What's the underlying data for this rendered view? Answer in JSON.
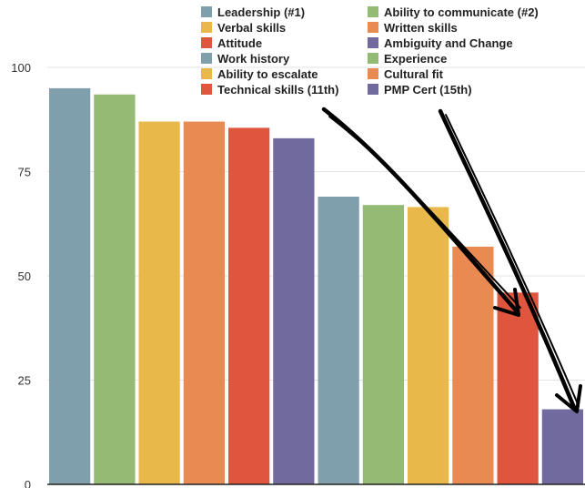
{
  "colors": {
    "grid": "#e3e3e3",
    "axis": "#222222",
    "arrow": "#000000"
  },
  "chart_data": {
    "type": "bar",
    "title": "",
    "xlabel": "",
    "ylabel": "",
    "ylim": [
      0,
      100
    ],
    "yticks": [
      0,
      25,
      50,
      75,
      100
    ],
    "grid": true,
    "legend_position": "top-right",
    "categories": [
      "Leadership (#1)",
      "Ability to communicate (#2)",
      "Verbal skills",
      "Written skills",
      "Attitude",
      "Ambiguity and Change",
      "Work history",
      "Experience",
      "Ability to escalate",
      "Cultural fit",
      "Technical skills (11th)",
      "PMP Cert (15th)"
    ],
    "values": [
      95,
      93.5,
      87,
      87,
      85.5,
      83,
      69,
      67,
      66.5,
      57,
      46,
      18
    ],
    "bar_colors": [
      "#7f9fad",
      "#93bb73",
      "#e8b94a",
      "#ea8a53",
      "#e0553e",
      "#716a9e",
      "#7f9fad",
      "#93bb73",
      "#e8b94a",
      "#ea8a53",
      "#e0553e",
      "#716a9e"
    ]
  },
  "annotations": [
    {
      "label": "arrow-to-technical-skills",
      "points_to": "Technical skills (11th)"
    },
    {
      "label": "arrow-to-pmp-cert",
      "points_to": "PMP Cert (15th)"
    }
  ]
}
